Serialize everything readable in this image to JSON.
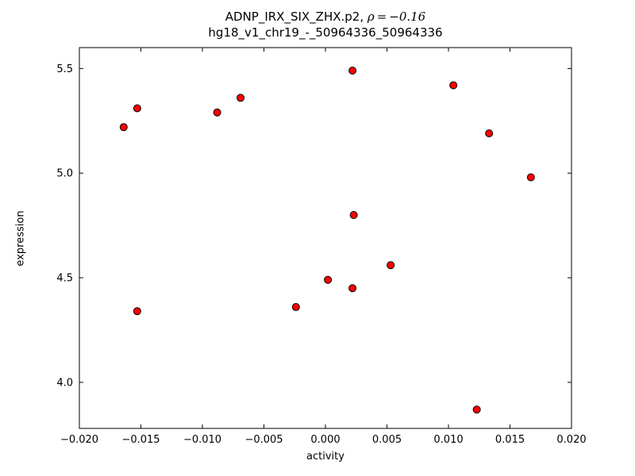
{
  "figure": {
    "title_line1_prefix": "ADNP_IRX_SIX_ZHX.p2, ",
    "title_line1_math": "ρ = −0.16",
    "title_line2": "hg18_v1_chr19_-_50964336_50964336"
  },
  "chart_data": {
    "type": "scatter",
    "title": "ADNP_IRX_SIX_ZHX.p2, ρ = −0.16",
    "subtitle": "hg18_v1_chr19_-_50964336_50964336",
    "xlabel": "activity",
    "ylabel": "expression",
    "xlim": [
      -0.02,
      0.02
    ],
    "ylim": [
      3.78,
      5.6
    ],
    "xticks": [
      -0.02,
      -0.015,
      -0.01,
      -0.005,
      0.0,
      0.005,
      0.01,
      0.015,
      0.02
    ],
    "xtick_labels": [
      "−0.020",
      "−0.015",
      "−0.010",
      "−0.005",
      "0.000",
      "0.005",
      "0.010",
      "0.015",
      "0.020"
    ],
    "yticks": [
      4.0,
      4.5,
      5.0,
      5.5
    ],
    "ytick_labels": [
      "4.0",
      "4.5",
      "5.0",
      "5.5"
    ],
    "grid": false,
    "legend": null,
    "marker": "o",
    "marker_color": "#ff0000",
    "marker_edge_color": "#000000",
    "points": [
      [
        -0.0164,
        5.22
      ],
      [
        -0.0153,
        5.31
      ],
      [
        -0.0153,
        4.34
      ],
      [
        -0.0088,
        5.29
      ],
      [
        -0.0069,
        5.36
      ],
      [
        -0.0024,
        4.36
      ],
      [
        0.0002,
        4.49
      ],
      [
        0.0022,
        5.49
      ],
      [
        0.0023,
        4.8
      ],
      [
        0.0022,
        4.45
      ],
      [
        0.0053,
        4.56
      ],
      [
        0.0104,
        5.42
      ],
      [
        0.0123,
        3.87
      ],
      [
        0.0133,
        5.19
      ],
      [
        0.0167,
        4.98
      ]
    ]
  }
}
